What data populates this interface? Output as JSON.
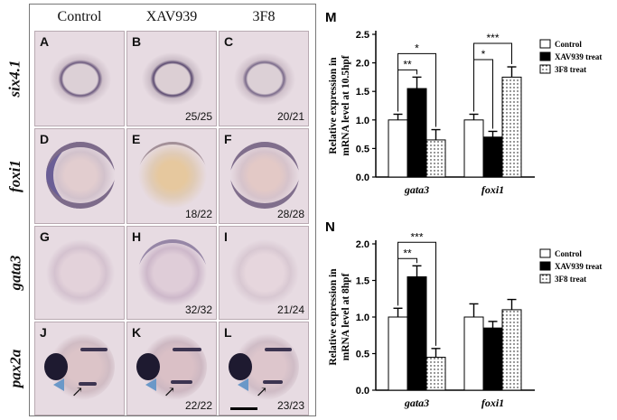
{
  "columns": [
    "Control",
    "XAV939",
    "3F8"
  ],
  "rows": [
    {
      "gene": "six4.1",
      "panels": [
        {
          "label": "A",
          "count": ""
        },
        {
          "label": "B",
          "count": "25/25"
        },
        {
          "label": "C",
          "count": "20/21"
        }
      ]
    },
    {
      "gene": "foxi1",
      "panels": [
        {
          "label": "D",
          "count": ""
        },
        {
          "label": "E",
          "count": "18/22"
        },
        {
          "label": "F",
          "count": "28/28"
        }
      ]
    },
    {
      "gene": "gata3",
      "panels": [
        {
          "label": "G",
          "count": ""
        },
        {
          "label": "H",
          "count": "32/32"
        },
        {
          "label": "I",
          "count": "21/24"
        }
      ]
    },
    {
      "gene": "pax2a",
      "panels": [
        {
          "label": "J",
          "count": ""
        },
        {
          "label": "K",
          "count": "22/22"
        },
        {
          "label": "L",
          "count": "23/23"
        }
      ]
    }
  ],
  "colors": {
    "control_bar": "#ffffff",
    "xav939_bar": "#000000",
    "f38_bar": "dotted",
    "arrowhead": "#6a98c8",
    "panel_bg": "#e7dbe2"
  },
  "chart_data": [
    {
      "type": "bar",
      "panel_label": "M",
      "ylabel": [
        "Relative expression in",
        "mRNA level at 10.5hpf"
      ],
      "categories": [
        "gata3",
        "foxi1"
      ],
      "ylim": [
        0,
        2.5
      ],
      "yticks": [
        "0.0",
        "0.5",
        "1.0",
        "1.5",
        "2.0",
        "2.5"
      ],
      "series": [
        {
          "name": "Control",
          "values": [
            1.0,
            1.0
          ],
          "errors": [
            0.1,
            0.1
          ]
        },
        {
          "name": "XAV939 treat",
          "values": [
            1.55,
            0.7
          ],
          "errors": [
            0.2,
            0.1
          ]
        },
        {
          "name": "3F8 treat",
          "values": [
            0.65,
            1.75
          ],
          "errors": [
            0.18,
            0.18
          ]
        }
      ],
      "significance": [
        {
          "category": 0,
          "from": 0,
          "to": 1,
          "stars": "**"
        },
        {
          "category": 0,
          "from": 0,
          "to": 2,
          "stars": "*"
        },
        {
          "category": 1,
          "from": 0,
          "to": 1,
          "stars": "*"
        },
        {
          "category": 1,
          "from": 0,
          "to": 2,
          "stars": "***"
        }
      ],
      "legend": "top-right"
    },
    {
      "type": "bar",
      "panel_label": "N",
      "ylabel": [
        "Relative expression in",
        "mRNA level at 8hpf"
      ],
      "categories": [
        "gata3",
        "foxi1"
      ],
      "ylim": [
        0,
        2.0
      ],
      "yticks": [
        "0.0",
        "0.5",
        "1.0",
        "1.5",
        "2.0"
      ],
      "series": [
        {
          "name": "Control",
          "values": [
            1.0,
            1.0
          ],
          "errors": [
            0.12,
            0.18
          ]
        },
        {
          "name": "XAV939 treat",
          "values": [
            1.55,
            0.85
          ],
          "errors": [
            0.15,
            0.09
          ]
        },
        {
          "name": "3F8 treat",
          "values": [
            0.45,
            1.1
          ],
          "errors": [
            0.12,
            0.14
          ]
        }
      ],
      "significance": [
        {
          "category": 0,
          "from": 0,
          "to": 1,
          "stars": "**"
        },
        {
          "category": 0,
          "from": 0,
          "to": 2,
          "stars": "***"
        }
      ],
      "legend": "top-right"
    }
  ]
}
